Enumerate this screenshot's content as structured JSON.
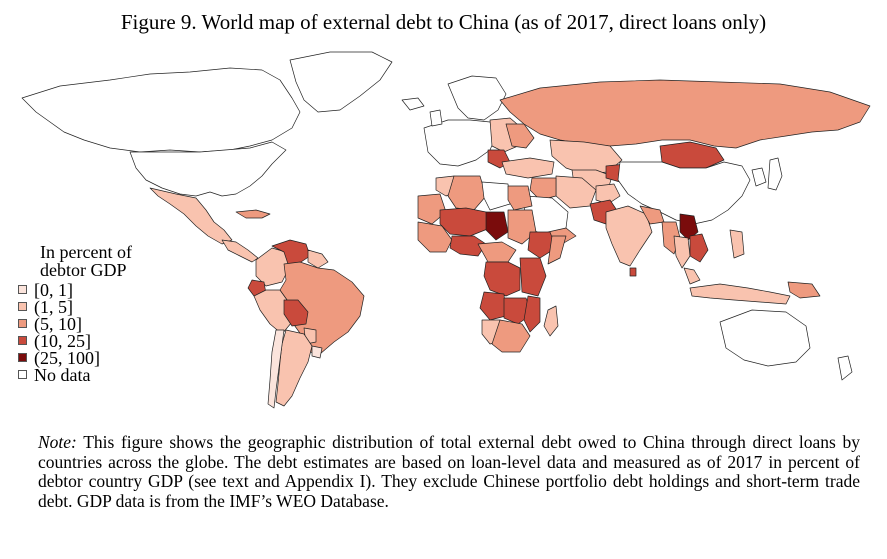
{
  "figure": {
    "title": "Figure 9. World map of external debt to China (as of 2017, direct loans only)"
  },
  "legend": {
    "title_line1": "In percent of",
    "title_line2": "debtor GDP",
    "items": [
      {
        "label": "[0, 1]",
        "color": "#fbe4dc"
      },
      {
        "label": "(1, 5]",
        "color": "#f9c3af"
      },
      {
        "label": "(5, 10]",
        "color": "#ee9a7f"
      },
      {
        "label": "(10, 25]",
        "color": "#c94a3c"
      },
      {
        "label": "(25, 100]",
        "color": "#7a0c0c"
      },
      {
        "label": "No data",
        "color": "#ffffff"
      }
    ]
  },
  "note": {
    "label": "Note:",
    "text": " This figure shows the geographic distribution of total external debt owed to China through direct loans by countries across the globe. The debt estimates are based on loan-level data and measured as of 2017 in percent of debtor country GDP (see text and Appendix I). They exclude Chinese portfolio debt holdings and short-term trade debt. GDP data is from the IMF’s WEO Database."
  },
  "colors": {
    "bin0": "#fbe4dc",
    "bin1": "#f9c3af",
    "bin2": "#ee9a7f",
    "bin3": "#c94a3c",
    "bin4": "#7a0c0c",
    "nodata": "#ffffff",
    "border": "#222222"
  }
}
